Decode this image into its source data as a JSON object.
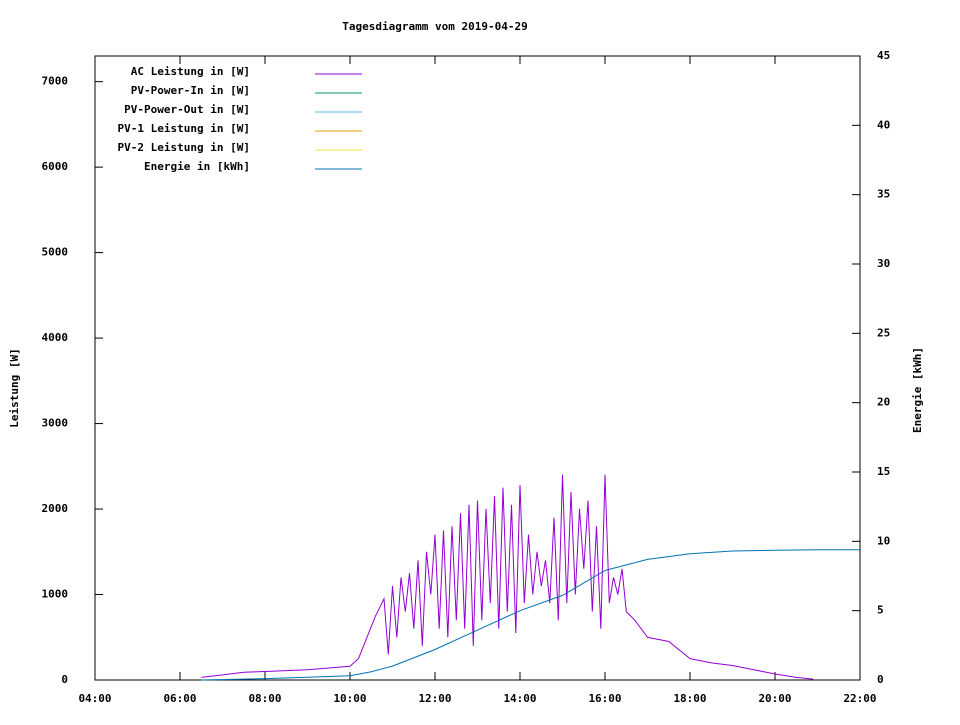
{
  "chart_data": {
    "type": "line",
    "title": "Tagesdiagramm vom 2019-04-29",
    "y_label": "Leistung [W]",
    "y2_label": "Energie [kWh]",
    "xlim": [
      4,
      22
    ],
    "xticks": [
      {
        "value": 4,
        "label": "04:00"
      },
      {
        "value": 6,
        "label": "06:00"
      },
      {
        "value": 8,
        "label": "08:00"
      },
      {
        "value": 10,
        "label": "10:00"
      },
      {
        "value": 12,
        "label": "12:00"
      },
      {
        "value": 14,
        "label": "14:00"
      },
      {
        "value": 16,
        "label": "16:00"
      },
      {
        "value": 18,
        "label": "18:00"
      },
      {
        "value": 20,
        "label": "20:00"
      },
      {
        "value": 22,
        "label": "22:00"
      }
    ],
    "ylim": [
      0,
      7300
    ],
    "yticks": [
      0,
      1000,
      2000,
      3000,
      4000,
      5000,
      6000,
      7000
    ],
    "y2lim": [
      0,
      45
    ],
    "y2ticks": [
      0,
      5,
      10,
      15,
      20,
      25,
      30,
      35,
      40,
      45
    ],
    "series": [
      {
        "name": "AC Leistung in [W]",
        "color": "#9400d3",
        "x": [
          6.5,
          7,
          7.5,
          8,
          8.5,
          9,
          9.5,
          10,
          10.2,
          10.4,
          10.6,
          10.8,
          10.9,
          11.0,
          11.1,
          11.2,
          11.3,
          11.4,
          11.5,
          11.6,
          11.7,
          11.8,
          11.9,
          12.0,
          12.1,
          12.2,
          12.3,
          12.4,
          12.5,
          12.6,
          12.7,
          12.8,
          12.9,
          13.0,
          13.1,
          13.2,
          13.3,
          13.4,
          13.5,
          13.6,
          13.7,
          13.8,
          13.9,
          14.0,
          14.1,
          14.2,
          14.3,
          14.4,
          14.5,
          14.6,
          14.7,
          14.8,
          14.9,
          15.0,
          15.1,
          15.2,
          15.3,
          15.4,
          15.5,
          15.6,
          15.7,
          15.8,
          15.9,
          16.0,
          16.1,
          16.2,
          16.3,
          16.4,
          16.5,
          16.7,
          17.0,
          17.5,
          18.0,
          18.5,
          19.0,
          19.5,
          20.0,
          20.5,
          20.9
        ],
        "values": [
          30,
          60,
          90,
          100,
          110,
          120,
          140,
          160,
          250,
          500,
          750,
          950,
          300,
          1100,
          500,
          1200,
          800,
          1250,
          600,
          1400,
          400,
          1500,
          1000,
          1700,
          600,
          1750,
          500,
          1800,
          700,
          1950,
          600,
          2050,
          400,
          2100,
          700,
          2000,
          900,
          2150,
          600,
          2250,
          800,
          2050,
          550,
          2280,
          900,
          1700,
          1000,
          1500,
          1100,
          1400,
          900,
          1900,
          700,
          2400,
          900,
          2200,
          1000,
          2000,
          1300,
          2100,
          800,
          1800,
          600,
          2400,
          900,
          1200,
          1000,
          1300,
          800,
          700,
          500,
          450,
          250,
          200,
          170,
          120,
          70,
          30,
          10
        ]
      },
      {
        "name": "PV-Power-In in [W]",
        "color": "#009e73",
        "x": [],
        "values": []
      },
      {
        "name": "PV-Power-Out in [W]",
        "color": "#56b4e9",
        "x": [],
        "values": []
      },
      {
        "name": "PV-1 Leistung in [W]",
        "color": "#e69f00",
        "x": [],
        "values": []
      },
      {
        "name": "PV-2 Leistung in [W]",
        "color": "#f0e442",
        "x": [],
        "values": []
      },
      {
        "name": "Energie in [kWh]",
        "color": "#0072b2",
        "axis": "y2",
        "x": [
          6.5,
          8,
          9,
          10,
          10.5,
          11,
          12,
          13,
          14,
          15,
          15.5,
          16,
          16.5,
          17,
          18,
          19,
          20,
          21,
          22
        ],
        "values": [
          0,
          0.1,
          0.2,
          0.3,
          0.6,
          1.0,
          2.2,
          3.6,
          5.0,
          6.1,
          7.0,
          7.9,
          8.3,
          8.7,
          9.1,
          9.3,
          9.35,
          9.4,
          9.4
        ]
      }
    ]
  }
}
